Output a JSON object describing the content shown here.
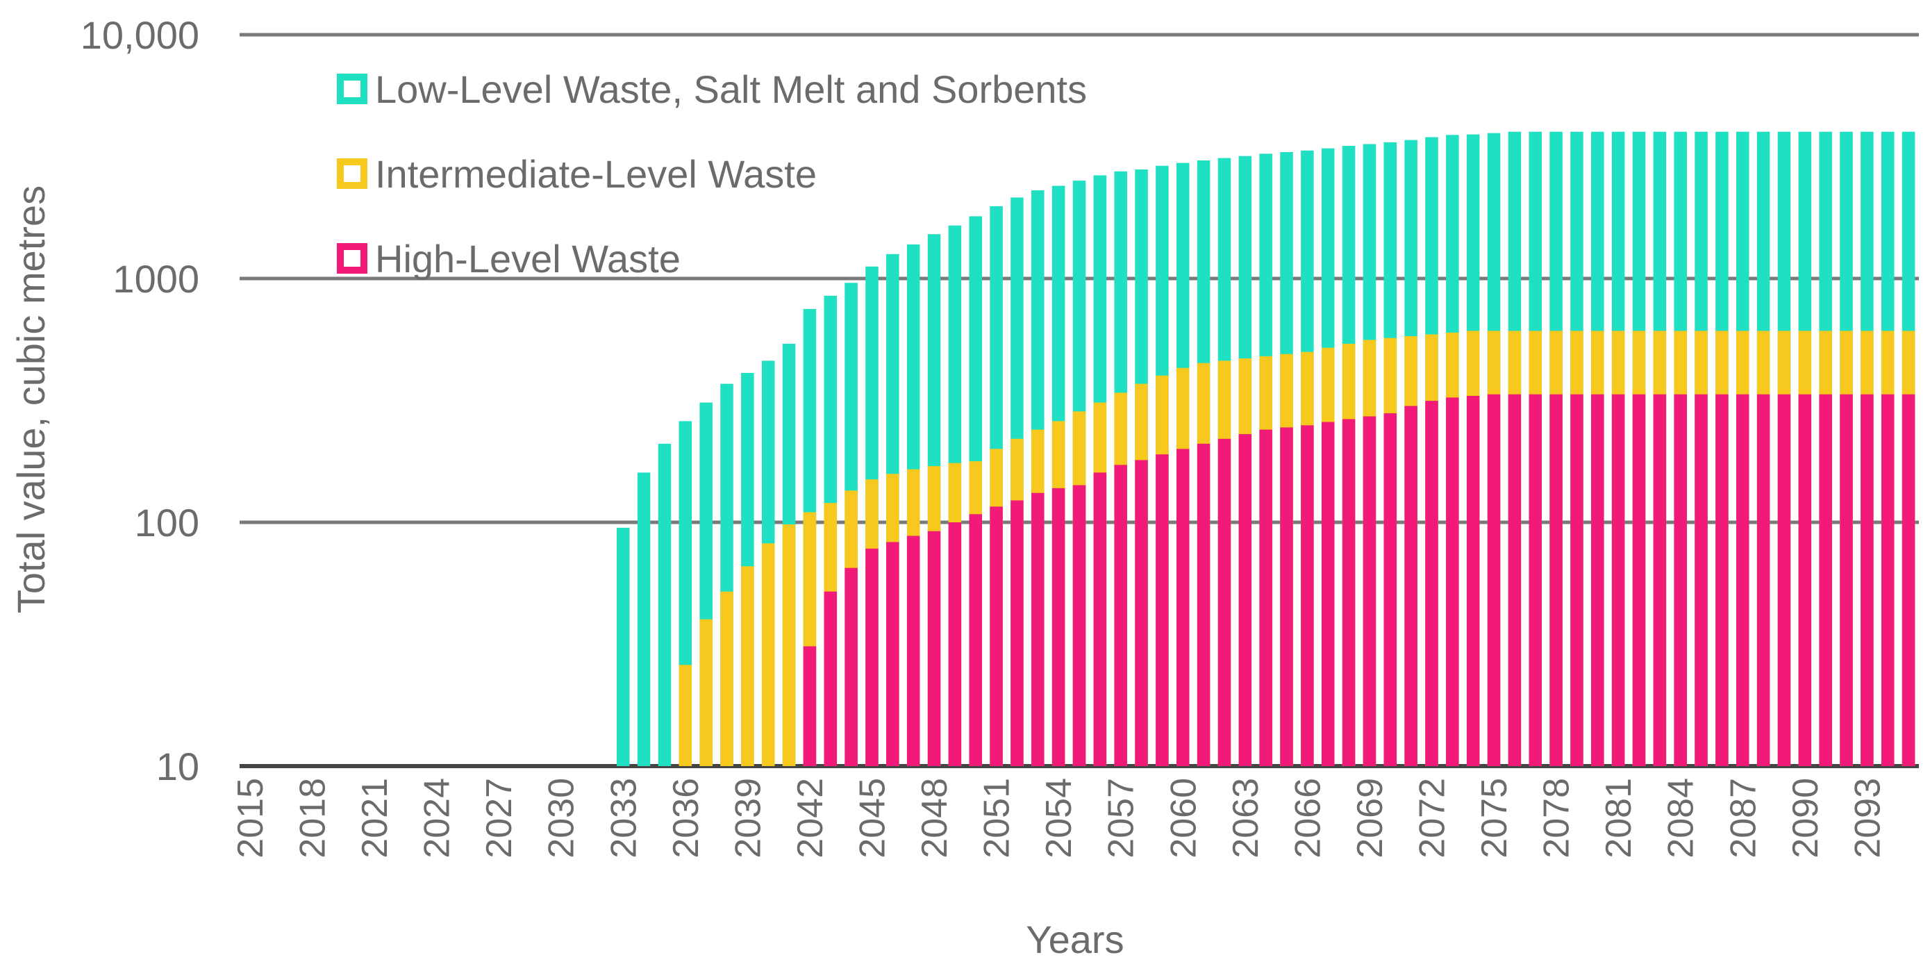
{
  "chart_data": {
    "type": "bar",
    "layout": "overlaid-bars",
    "title": "",
    "xlabel": "Years",
    "ylabel": "Total value, cubic metres",
    "yscale": "log",
    "ylim": [
      10,
      10000
    ],
    "yticks": [
      10,
      100,
      1000,
      10000
    ],
    "ytick_labels": [
      "10",
      "100",
      "1000",
      "10,000"
    ],
    "grid": true,
    "legend_position": "top-left",
    "x_start": 2015,
    "x_end": 2095,
    "xtick_labels": [
      "2015",
      "2018",
      "2021",
      "2024",
      "2027",
      "2030",
      "2033",
      "2036",
      "2039",
      "2042",
      "2045",
      "2048",
      "2051",
      "2054",
      "2057",
      "2060",
      "2063",
      "2066",
      "2069",
      "2072",
      "2075",
      "2078",
      "2081",
      "2084",
      "2087",
      "2090",
      "2093"
    ],
    "series": [
      {
        "name": "Low-Level Waste, Salt Melt and Sorbents",
        "color": "#1fe0c2",
        "start_year": 2033,
        "values": [
          95,
          160,
          210,
          260,
          310,
          370,
          410,
          460,
          540,
          750,
          850,
          960,
          1120,
          1260,
          1380,
          1520,
          1650,
          1800,
          1980,
          2150,
          2300,
          2400,
          2520,
          2650,
          2750,
          2800,
          2900,
          2980,
          3050,
          3120,
          3180,
          3250,
          3300,
          3350,
          3420,
          3500,
          3560,
          3620,
          3700,
          3800,
          3880,
          3900,
          3950,
          4000,
          4000,
          4000,
          4000,
          4000,
          4000,
          4000,
          4000,
          4000,
          4000,
          4000,
          4000,
          4000,
          4000,
          4000,
          4000,
          4000,
          4000,
          4000,
          4000
        ]
      },
      {
        "name": "Intermediate-Level Waste",
        "color": "#f7c81e",
        "start_year": 2036,
        "values": [
          26,
          40,
          52,
          66,
          82,
          98,
          110,
          120,
          135,
          150,
          158,
          165,
          170,
          175,
          178,
          200,
          220,
          240,
          260,
          285,
          310,
          340,
          370,
          400,
          430,
          450,
          460,
          470,
          480,
          490,
          500,
          520,
          540,
          560,
          570,
          580,
          590,
          600,
          610,
          610,
          610,
          610,
          610,
          610,
          610,
          610,
          610,
          610,
          610,
          610,
          610,
          610,
          610,
          610,
          610,
          610,
          610,
          610,
          610,
          610
        ]
      },
      {
        "name": "High-Level Waste",
        "color": "#f21a78",
        "start_year": 2042,
        "values": [
          31,
          52,
          65,
          78,
          83,
          88,
          92,
          100,
          108,
          116,
          123,
          132,
          138,
          142,
          160,
          172,
          180,
          190,
          200,
          210,
          220,
          230,
          240,
          245,
          250,
          258,
          265,
          272,
          280,
          300,
          315,
          325,
          330,
          335,
          335,
          335,
          335,
          335,
          335,
          335,
          335,
          335,
          335,
          335,
          335,
          335,
          335,
          335,
          335,
          335,
          335,
          335,
          335,
          335
        ]
      }
    ]
  }
}
